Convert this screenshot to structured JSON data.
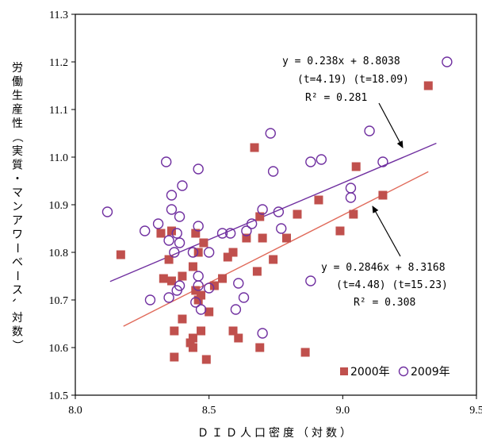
{
  "chart_data": {
    "type": "scatter",
    "xlabel": "ＤＩＤ人口密度（対数）",
    "ylabel": "労働生産性（実質・マンアワーベース、対数）",
    "xlim": [
      8.0,
      9.5
    ],
    "ylim": [
      10.5,
      11.3
    ],
    "xticks": [
      "8.0",
      "8.5",
      "9.0",
      "9.5"
    ],
    "yticks": [
      "10.5",
      "10.6",
      "10.7",
      "10.8",
      "10.9",
      "11.0",
      "11.1",
      "11.2",
      "11.3"
    ],
    "legend_position": "bottom-right",
    "series": [
      {
        "name": "2000年",
        "marker": "filled-square",
        "color": "#c0504d",
        "points": [
          [
            8.17,
            10.795
          ],
          [
            8.32,
            10.84
          ],
          [
            8.33,
            10.745
          ],
          [
            8.35,
            10.785
          ],
          [
            8.36,
            10.845
          ],
          [
            8.36,
            10.74
          ],
          [
            8.37,
            10.635
          ],
          [
            8.37,
            10.58
          ],
          [
            8.4,
            10.75
          ],
          [
            8.4,
            10.66
          ],
          [
            8.43,
            10.61
          ],
          [
            8.44,
            10.77
          ],
          [
            8.44,
            10.62
          ],
          [
            8.44,
            10.6
          ],
          [
            8.45,
            10.84
          ],
          [
            8.45,
            10.72
          ],
          [
            8.46,
            10.8
          ],
          [
            8.46,
            10.7
          ],
          [
            8.47,
            10.71
          ],
          [
            8.47,
            10.635
          ],
          [
            8.48,
            10.82
          ],
          [
            8.49,
            10.575
          ],
          [
            8.5,
            10.675
          ],
          [
            8.52,
            10.73
          ],
          [
            8.55,
            10.745
          ],
          [
            8.57,
            10.79
          ],
          [
            8.59,
            10.8
          ],
          [
            8.59,
            10.635
          ],
          [
            8.61,
            10.62
          ],
          [
            8.64,
            10.83
          ],
          [
            8.67,
            11.02
          ],
          [
            8.68,
            10.76
          ],
          [
            8.69,
            10.875
          ],
          [
            8.69,
            10.6
          ],
          [
            8.7,
            10.83
          ],
          [
            8.74,
            10.785
          ],
          [
            8.79,
            10.83
          ],
          [
            8.83,
            10.88
          ],
          [
            8.86,
            10.59
          ],
          [
            8.91,
            10.91
          ],
          [
            8.99,
            10.845
          ],
          [
            9.04,
            10.88
          ],
          [
            9.05,
            10.98
          ],
          [
            9.15,
            10.92
          ],
          [
            9.32,
            11.15
          ]
        ]
      },
      {
        "name": "2009年",
        "marker": "open-circle",
        "color": "#7030a0",
        "points": [
          [
            8.12,
            10.885
          ],
          [
            8.26,
            10.845
          ],
          [
            8.28,
            10.7
          ],
          [
            8.31,
            10.86
          ],
          [
            8.34,
            10.99
          ],
          [
            8.35,
            10.825
          ],
          [
            8.35,
            10.705
          ],
          [
            8.36,
            10.92
          ],
          [
            8.36,
            10.89
          ],
          [
            8.37,
            10.8
          ],
          [
            8.38,
            10.84
          ],
          [
            8.38,
            10.72
          ],
          [
            8.39,
            10.82
          ],
          [
            8.39,
            10.73
          ],
          [
            8.39,
            10.875
          ],
          [
            8.4,
            10.94
          ],
          [
            8.44,
            10.8
          ],
          [
            8.45,
            10.695
          ],
          [
            8.46,
            10.975
          ],
          [
            8.46,
            10.855
          ],
          [
            8.46,
            10.75
          ],
          [
            8.46,
            10.73
          ],
          [
            8.47,
            10.68
          ],
          [
            8.5,
            10.8
          ],
          [
            8.5,
            10.725
          ],
          [
            8.55,
            10.84
          ],
          [
            8.58,
            10.84
          ],
          [
            8.6,
            10.68
          ],
          [
            8.61,
            10.735
          ],
          [
            8.63,
            10.705
          ],
          [
            8.64,
            10.845
          ],
          [
            8.66,
            10.86
          ],
          [
            8.7,
            10.89
          ],
          [
            8.7,
            10.63
          ],
          [
            8.73,
            11.05
          ],
          [
            8.74,
            10.97
          ],
          [
            8.76,
            10.885
          ],
          [
            8.77,
            10.85
          ],
          [
            8.88,
            10.99
          ],
          [
            8.88,
            10.74
          ],
          [
            8.92,
            10.995
          ],
          [
            9.03,
            10.935
          ],
          [
            9.03,
            10.915
          ],
          [
            9.1,
            11.055
          ],
          [
            9.15,
            10.99
          ],
          [
            9.39,
            11.2
          ]
        ]
      }
    ],
    "trendlines": [
      {
        "series": "2009年",
        "color": "#7030a0",
        "slope": 0.238,
        "intercept": 8.8038,
        "x_range": [
          8.13,
          9.35
        ]
      },
      {
        "series": "2000年",
        "color": "#e06a5a",
        "slope": 0.2846,
        "intercept": 8.3168,
        "x_range": [
          8.18,
          9.32
        ]
      }
    ],
    "annotations": [
      {
        "lines": [
          "y = 0.238x + 8.8038",
          "(t=4.19)  (t=18.09)",
          "R² = 0.281"
        ],
        "series": "2009年"
      },
      {
        "lines": [
          "y = 0.2846x + 8.3168",
          "(t=4.48)  (t=15.23)",
          "R² = 0.308"
        ],
        "series": "2000年"
      }
    ]
  }
}
